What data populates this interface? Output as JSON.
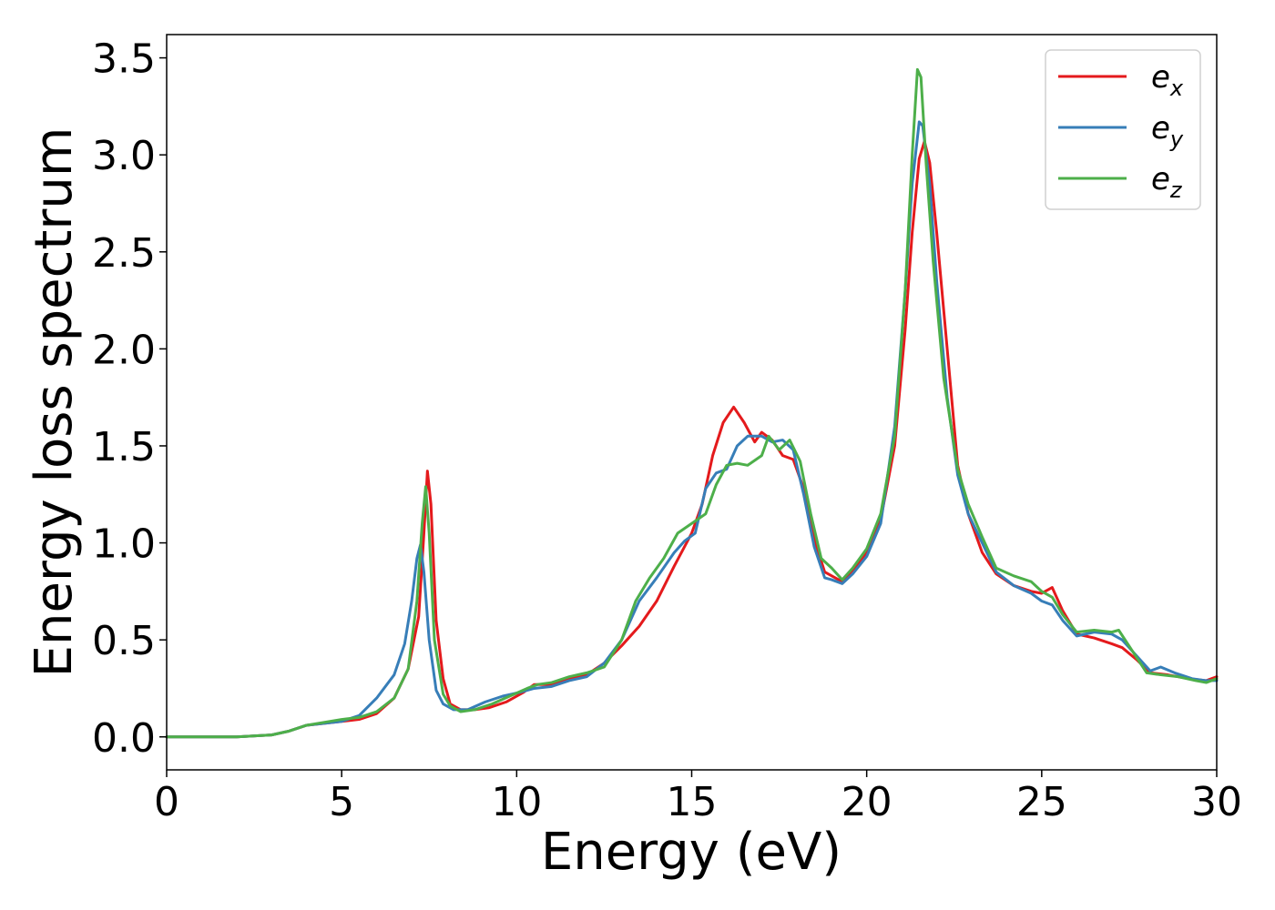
{
  "chart_data": {
    "type": "line",
    "xlabel": "Energy (eV)",
    "ylabel": "Energy loss spectrum",
    "xlim": [
      0,
      30
    ],
    "ylim": [
      -0.17,
      3.62
    ],
    "xticks": [
      0,
      5,
      10,
      15,
      20,
      25,
      30
    ],
    "xtick_labels": [
      "0",
      "5",
      "10",
      "15",
      "20",
      "25",
      "30"
    ],
    "yticks": [
      0.0,
      0.5,
      1.0,
      1.5,
      2.0,
      2.5,
      3.0,
      3.5
    ],
    "ytick_labels": [
      "0.0",
      "0.5",
      "1.0",
      "1.5",
      "2.0",
      "2.5",
      "3.0",
      "3.5"
    ],
    "grid": false,
    "legend_position": "top-right",
    "series": [
      {
        "name": "e",
        "subscript": "x",
        "color": "#e41a1c",
        "points": [
          [
            0,
            0.0
          ],
          [
            1,
            0.0
          ],
          [
            2,
            0.0
          ],
          [
            3,
            0.01
          ],
          [
            3.5,
            0.03
          ],
          [
            4,
            0.06
          ],
          [
            5,
            0.08
          ],
          [
            5.5,
            0.09
          ],
          [
            6,
            0.12
          ],
          [
            6.5,
            0.2
          ],
          [
            6.9,
            0.35
          ],
          [
            7.2,
            0.62
          ],
          [
            7.35,
            1.05
          ],
          [
            7.45,
            1.37
          ],
          [
            7.55,
            1.2
          ],
          [
            7.7,
            0.6
          ],
          [
            7.9,
            0.3
          ],
          [
            8.1,
            0.17
          ],
          [
            8.4,
            0.14
          ],
          [
            8.8,
            0.14
          ],
          [
            9.2,
            0.15
          ],
          [
            9.7,
            0.18
          ],
          [
            10.2,
            0.23
          ],
          [
            10.5,
            0.27
          ],
          [
            11.0,
            0.27
          ],
          [
            11.5,
            0.3
          ],
          [
            12.0,
            0.32
          ],
          [
            12.5,
            0.38
          ],
          [
            13.0,
            0.47
          ],
          [
            13.5,
            0.57
          ],
          [
            14.0,
            0.7
          ],
          [
            14.5,
            0.88
          ],
          [
            15.0,
            1.05
          ],
          [
            15.3,
            1.2
          ],
          [
            15.6,
            1.45
          ],
          [
            15.9,
            1.62
          ],
          [
            16.2,
            1.7
          ],
          [
            16.5,
            1.62
          ],
          [
            16.8,
            1.52
          ],
          [
            17.0,
            1.57
          ],
          [
            17.3,
            1.53
          ],
          [
            17.6,
            1.45
          ],
          [
            17.9,
            1.43
          ],
          [
            18.2,
            1.28
          ],
          [
            18.5,
            1.02
          ],
          [
            18.8,
            0.85
          ],
          [
            19.0,
            0.83
          ],
          [
            19.3,
            0.8
          ],
          [
            19.6,
            0.86
          ],
          [
            20.0,
            0.95
          ],
          [
            20.4,
            1.12
          ],
          [
            20.8,
            1.5
          ],
          [
            21.1,
            2.1
          ],
          [
            21.3,
            2.6
          ],
          [
            21.5,
            2.98
          ],
          [
            21.65,
            3.07
          ],
          [
            21.8,
            2.96
          ],
          [
            22.0,
            2.6
          ],
          [
            22.3,
            2.0
          ],
          [
            22.6,
            1.4
          ],
          [
            22.9,
            1.15
          ],
          [
            23.3,
            0.95
          ],
          [
            23.7,
            0.84
          ],
          [
            24.2,
            0.78
          ],
          [
            24.7,
            0.75
          ],
          [
            25.0,
            0.74
          ],
          [
            25.3,
            0.77
          ],
          [
            25.6,
            0.65
          ],
          [
            26.0,
            0.53
          ],
          [
            26.5,
            0.51
          ],
          [
            27.0,
            0.48
          ],
          [
            27.3,
            0.46
          ],
          [
            27.7,
            0.4
          ],
          [
            28.1,
            0.33
          ],
          [
            28.6,
            0.32
          ],
          [
            29.2,
            0.3
          ],
          [
            29.7,
            0.29
          ],
          [
            30.0,
            0.31
          ]
        ]
      },
      {
        "name": "e",
        "subscript": "y",
        "color": "#377eb8",
        "points": [
          [
            0,
            0.0
          ],
          [
            1,
            0.0
          ],
          [
            2,
            0.0
          ],
          [
            3,
            0.01
          ],
          [
            3.5,
            0.03
          ],
          [
            4,
            0.06
          ],
          [
            5,
            0.08
          ],
          [
            5.5,
            0.11
          ],
          [
            6,
            0.2
          ],
          [
            6.5,
            0.32
          ],
          [
            6.8,
            0.48
          ],
          [
            7.0,
            0.7
          ],
          [
            7.15,
            0.92
          ],
          [
            7.25,
            0.99
          ],
          [
            7.35,
            0.85
          ],
          [
            7.5,
            0.5
          ],
          [
            7.7,
            0.24
          ],
          [
            7.9,
            0.17
          ],
          [
            8.2,
            0.14
          ],
          [
            8.6,
            0.14
          ],
          [
            9.1,
            0.18
          ],
          [
            9.6,
            0.21
          ],
          [
            10.1,
            0.23
          ],
          [
            10.5,
            0.25
          ],
          [
            11.0,
            0.26
          ],
          [
            11.5,
            0.29
          ],
          [
            12.0,
            0.31
          ],
          [
            12.5,
            0.38
          ],
          [
            13.0,
            0.5
          ],
          [
            13.5,
            0.7
          ],
          [
            14.0,
            0.82
          ],
          [
            14.5,
            0.95
          ],
          [
            14.8,
            1.01
          ],
          [
            15.1,
            1.05
          ],
          [
            15.4,
            1.28
          ],
          [
            15.7,
            1.36
          ],
          [
            16.0,
            1.38
          ],
          [
            16.3,
            1.5
          ],
          [
            16.6,
            1.55
          ],
          [
            17.0,
            1.55
          ],
          [
            17.3,
            1.52
          ],
          [
            17.6,
            1.53
          ],
          [
            17.9,
            1.48
          ],
          [
            18.2,
            1.25
          ],
          [
            18.5,
            0.98
          ],
          [
            18.8,
            0.82
          ],
          [
            19.0,
            0.81
          ],
          [
            19.3,
            0.79
          ],
          [
            19.6,
            0.84
          ],
          [
            20.0,
            0.93
          ],
          [
            20.4,
            1.1
          ],
          [
            20.8,
            1.6
          ],
          [
            21.1,
            2.3
          ],
          [
            21.3,
            2.85
          ],
          [
            21.5,
            3.17
          ],
          [
            21.6,
            3.15
          ],
          [
            21.8,
            2.85
          ],
          [
            22.0,
            2.35
          ],
          [
            22.3,
            1.75
          ],
          [
            22.6,
            1.35
          ],
          [
            22.9,
            1.15
          ],
          [
            23.3,
            1.0
          ],
          [
            23.7,
            0.85
          ],
          [
            24.2,
            0.78
          ],
          [
            24.7,
            0.74
          ],
          [
            25.0,
            0.7
          ],
          [
            25.3,
            0.68
          ],
          [
            25.6,
            0.6
          ],
          [
            26.0,
            0.52
          ],
          [
            26.5,
            0.54
          ],
          [
            27.0,
            0.53
          ],
          [
            27.3,
            0.5
          ],
          [
            27.7,
            0.42
          ],
          [
            28.1,
            0.34
          ],
          [
            28.4,
            0.36
          ],
          [
            28.8,
            0.33
          ],
          [
            29.3,
            0.3
          ],
          [
            29.7,
            0.29
          ],
          [
            30.0,
            0.29
          ]
        ]
      },
      {
        "name": "e",
        "subscript": "z",
        "color": "#4daf4a",
        "points": [
          [
            0,
            0.0
          ],
          [
            1,
            0.0
          ],
          [
            2,
            0.0
          ],
          [
            3,
            0.01
          ],
          [
            3.5,
            0.03
          ],
          [
            4,
            0.06
          ],
          [
            5,
            0.09
          ],
          [
            5.5,
            0.1
          ],
          [
            6,
            0.13
          ],
          [
            6.5,
            0.2
          ],
          [
            6.9,
            0.35
          ],
          [
            7.15,
            0.7
          ],
          [
            7.3,
            1.1
          ],
          [
            7.4,
            1.29
          ],
          [
            7.5,
            1.05
          ],
          [
            7.65,
            0.5
          ],
          [
            7.9,
            0.22
          ],
          [
            8.1,
            0.16
          ],
          [
            8.4,
            0.13
          ],
          [
            8.8,
            0.14
          ],
          [
            9.3,
            0.17
          ],
          [
            9.8,
            0.21
          ],
          [
            10.3,
            0.25
          ],
          [
            10.6,
            0.27
          ],
          [
            11.0,
            0.28
          ],
          [
            11.5,
            0.31
          ],
          [
            12.0,
            0.33
          ],
          [
            12.5,
            0.36
          ],
          [
            13.0,
            0.5
          ],
          [
            13.4,
            0.7
          ],
          [
            13.8,
            0.82
          ],
          [
            14.2,
            0.92
          ],
          [
            14.6,
            1.05
          ],
          [
            15.0,
            1.1
          ],
          [
            15.4,
            1.15
          ],
          [
            15.7,
            1.3
          ],
          [
            16.0,
            1.4
          ],
          [
            16.3,
            1.41
          ],
          [
            16.6,
            1.4
          ],
          [
            17.0,
            1.45
          ],
          [
            17.2,
            1.55
          ],
          [
            17.5,
            1.48
          ],
          [
            17.8,
            1.53
          ],
          [
            18.1,
            1.42
          ],
          [
            18.4,
            1.15
          ],
          [
            18.7,
            0.92
          ],
          [
            19.0,
            0.87
          ],
          [
            19.3,
            0.81
          ],
          [
            19.6,
            0.87
          ],
          [
            20.0,
            0.97
          ],
          [
            20.4,
            1.15
          ],
          [
            20.8,
            1.55
          ],
          [
            21.1,
            2.3
          ],
          [
            21.3,
            3.0
          ],
          [
            21.45,
            3.44
          ],
          [
            21.55,
            3.4
          ],
          [
            21.7,
            2.95
          ],
          [
            21.9,
            2.45
          ],
          [
            22.2,
            1.85
          ],
          [
            22.6,
            1.38
          ],
          [
            22.9,
            1.2
          ],
          [
            23.3,
            1.03
          ],
          [
            23.7,
            0.87
          ],
          [
            24.2,
            0.83
          ],
          [
            24.7,
            0.8
          ],
          [
            25.0,
            0.75
          ],
          [
            25.3,
            0.72
          ],
          [
            25.6,
            0.63
          ],
          [
            26.0,
            0.54
          ],
          [
            26.5,
            0.55
          ],
          [
            27.0,
            0.54
          ],
          [
            27.2,
            0.55
          ],
          [
            27.6,
            0.44
          ],
          [
            28.0,
            0.33
          ],
          [
            28.4,
            0.32
          ],
          [
            28.9,
            0.31
          ],
          [
            29.4,
            0.29
          ],
          [
            29.7,
            0.28
          ],
          [
            30.0,
            0.3
          ]
        ]
      }
    ]
  }
}
